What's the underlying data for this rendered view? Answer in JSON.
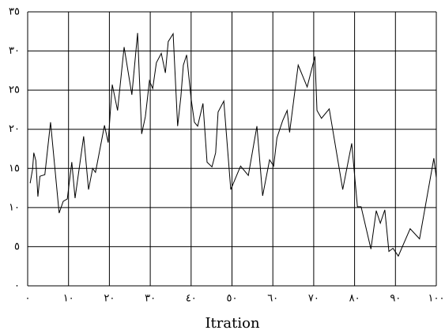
{
  "chart_data": {
    "type": "line",
    "x_label": "Itration",
    "xlim": [
      0,
      100
    ],
    "xticks": [
      {
        "value": 0,
        "label": "٠"
      },
      {
        "value": 10,
        "label": "١٠"
      },
      {
        "value": 20,
        "label": "٢٠"
      },
      {
        "value": 30,
        "label": "٣٠"
      },
      {
        "value": 40,
        "label": "٤٠"
      },
      {
        "value": 50,
        "label": "٥٠"
      },
      {
        "value": 60,
        "label": "٦٠"
      },
      {
        "value": 70,
        "label": "٧٠"
      },
      {
        "value": 80,
        "label": "٨٠"
      },
      {
        "value": 90,
        "label": "٩٠"
      },
      {
        "value": 100,
        "label": "١٠٠"
      }
    ],
    "ylim": [
      0,
      35
    ],
    "yticks": [
      {
        "value": 0,
        "label": "٠"
      },
      {
        "value": 5,
        "label": "٥"
      },
      {
        "value": 10,
        "label": "١٠"
      },
      {
        "value": 15,
        "label": "١٥"
      },
      {
        "value": 20,
        "label": "٢٠"
      },
      {
        "value": 25,
        "label": "٢٥"
      },
      {
        "value": 30,
        "label": "٣٠"
      },
      {
        "value": 35,
        "label": "٣٥"
      }
    ],
    "grid": true,
    "series": [
      {
        "color": "#000000",
        "x": [
          0.6,
          1.2,
          1.5,
          2,
          2.5,
          3,
          4.2,
          5.6,
          7.7,
          8.7,
          9.7,
          10.8,
          11.6,
          13.7,
          14.9,
          15.9,
          16.6,
          18.8,
          19.7,
          20.7,
          22,
          23.6,
          25.5,
          26.9,
          27.9,
          28.8,
          29.8,
          30.6,
          31.5,
          32.7,
          33.7,
          34.4,
          35.6,
          36.7,
          37.5,
          38.1,
          38.9,
          40,
          40.8,
          41.6,
          42.9,
          43.9,
          45.1,
          46,
          46.6,
          48,
          49.7,
          52.1,
          54,
          56.1,
          57.5,
          59.2,
          60.2,
          61,
          62.4,
          63.5,
          64.1,
          66.2,
          68.4,
          70.3,
          70.8,
          71.9,
          73.8,
          77.1,
          79.3,
          80.7,
          81.6,
          84,
          85.3,
          86.3,
          87.4,
          88.4,
          89.4,
          90.7,
          93.6,
          95.9,
          99.4,
          100
        ],
        "values": [
          13.1,
          14.9,
          17,
          16,
          11.4,
          14,
          14.2,
          20.9,
          9.3,
          10.8,
          11.1,
          15.8,
          11.2,
          19.1,
          12.3,
          15,
          14.5,
          20.5,
          18.3,
          25.7,
          22.4,
          30.5,
          24.4,
          32.3,
          19.4,
          21.6,
          26.2,
          25.2,
          28.5,
          29.7,
          27.2,
          31.2,
          32.2,
          20.4,
          24.2,
          28.2,
          29.5,
          23.9,
          20.9,
          20.4,
          23.3,
          15.8,
          15.2,
          17,
          22.2,
          23.6,
          12.3,
          15.3,
          14.1,
          20.4,
          11.5,
          16.1,
          15.3,
          18.9,
          21.1,
          22.4,
          19.6,
          28.2,
          25.4,
          29.3,
          22.4,
          21.4,
          22.6,
          12.3,
          18.2,
          10.1,
          10.1,
          4.7,
          9.6,
          8,
          9.7,
          4.4,
          4.8,
          3.8,
          7.3,
          6,
          16.3,
          13.8
        ]
      }
    ]
  }
}
